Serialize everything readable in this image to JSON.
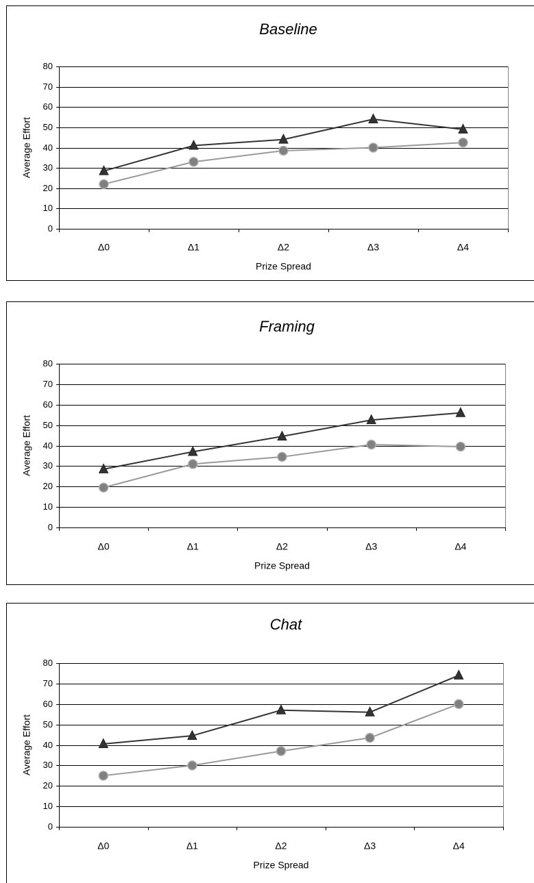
{
  "chart_data": [
    {
      "type": "line",
      "title": "Baseline",
      "xlabel": "Prize Spread",
      "ylabel": "Average Effort",
      "categories": [
        "Δ0",
        "Δ1",
        "Δ2",
        "Δ3",
        "Δ4"
      ],
      "ylim": [
        0,
        80
      ],
      "yticks": [
        "0",
        "10",
        "20",
        "30",
        "40",
        "50",
        "60",
        "70",
        "80"
      ],
      "grid": true,
      "series": [
        {
          "marker": "triangle",
          "color": "#333333",
          "values": [
            28.5,
            41,
            44,
            54,
            49
          ]
        },
        {
          "marker": "circle",
          "color": "#999999",
          "values": [
            22,
            33,
            38.5,
            40,
            42.5
          ]
        }
      ]
    },
    {
      "type": "line",
      "title": "Framing",
      "xlabel": "Prize Spread",
      "ylabel": "Average Effort",
      "categories": [
        "Δ0",
        "Δ1",
        "Δ2",
        "Δ3",
        "Δ4"
      ],
      "ylim": [
        0,
        80
      ],
      "yticks": [
        "0",
        "10",
        "20",
        "30",
        "40",
        "50",
        "60",
        "70",
        "80"
      ],
      "grid": true,
      "series": [
        {
          "marker": "triangle",
          "color": "#333333",
          "values": [
            28.5,
            37,
            44.5,
            52.5,
            56
          ]
        },
        {
          "marker": "circle",
          "color": "#999999",
          "values": [
            19.5,
            31,
            34.5,
            40.5,
            39.5
          ]
        }
      ]
    },
    {
      "type": "line",
      "title": "Chat",
      "xlabel": "Prize Spread",
      "ylabel": "Average Effort",
      "categories": [
        "Δ0",
        "Δ1",
        "Δ2",
        "Δ3",
        "Δ4"
      ],
      "ylim": [
        0,
        80
      ],
      "yticks": [
        "0",
        "10",
        "20",
        "30",
        "40",
        "50",
        "60",
        "70",
        "80"
      ],
      "grid": true,
      "series": [
        {
          "marker": "triangle",
          "color": "#333333",
          "values": [
            40.5,
            44.5,
            57,
            56,
            74
          ]
        },
        {
          "marker": "circle",
          "color": "#999999",
          "values": [
            25,
            30,
            37,
            43.5,
            60
          ]
        }
      ]
    }
  ]
}
